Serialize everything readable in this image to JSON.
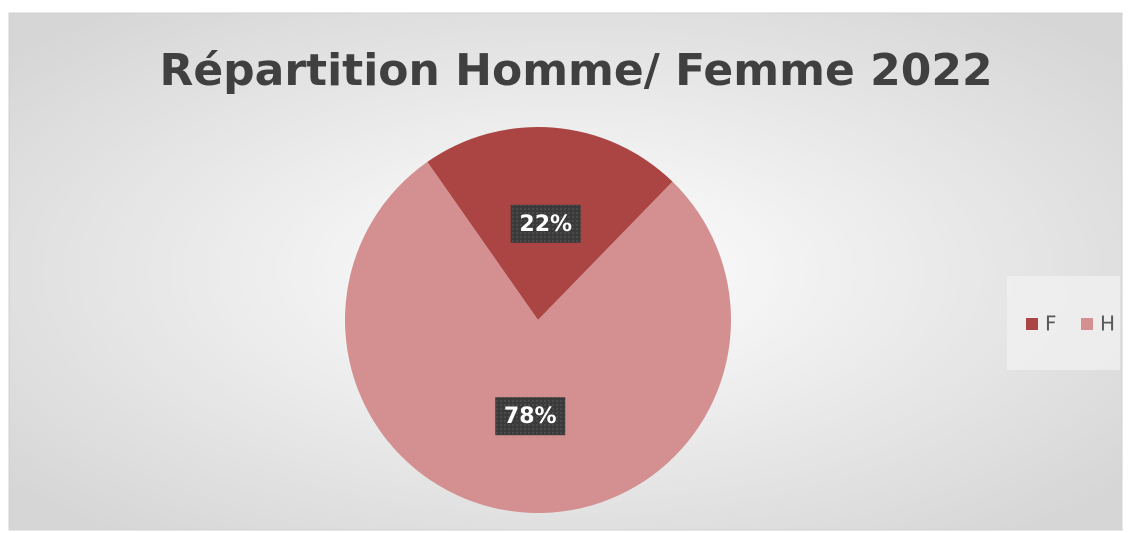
{
  "chart_data": {
    "type": "pie",
    "title": "Répartition Homme/ Femme 2022",
    "categories": [
      "F",
      "H"
    ],
    "values": [
      22,
      78
    ],
    "value_labels": [
      "22%",
      "78%"
    ],
    "colors": [
      "#ab4543",
      "#d49090"
    ],
    "legend": "right"
  }
}
